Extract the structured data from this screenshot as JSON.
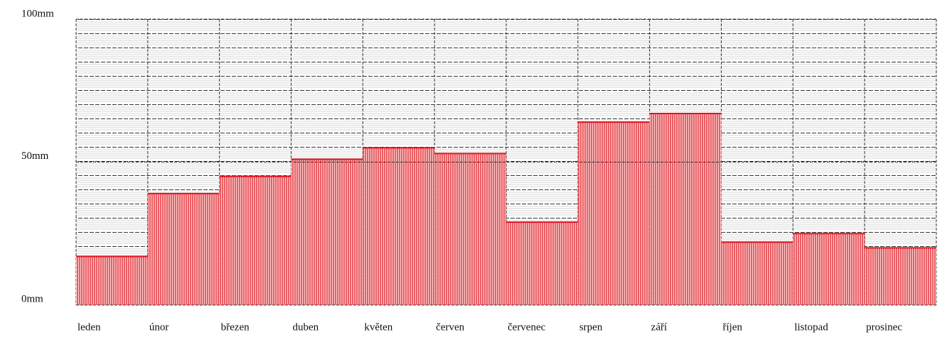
{
  "chart_data": {
    "type": "bar",
    "categories": [
      "leden",
      "únor",
      "březen",
      "duben",
      "květen",
      "červen",
      "červenec",
      "srpen",
      "září",
      "říjen",
      "listopad",
      "prosinec"
    ],
    "values": [
      17,
      39,
      45,
      51,
      55,
      53,
      29,
      64,
      67,
      22,
      25,
      20
    ],
    "color": "#e0141e",
    "ylim": [
      0,
      100
    ],
    "yticks": [
      {
        "value": 0,
        "label": "0mm"
      },
      {
        "value": 50,
        "label": "50mm"
      },
      {
        "value": 100,
        "label": "100mm"
      }
    ],
    "grid": true
  }
}
